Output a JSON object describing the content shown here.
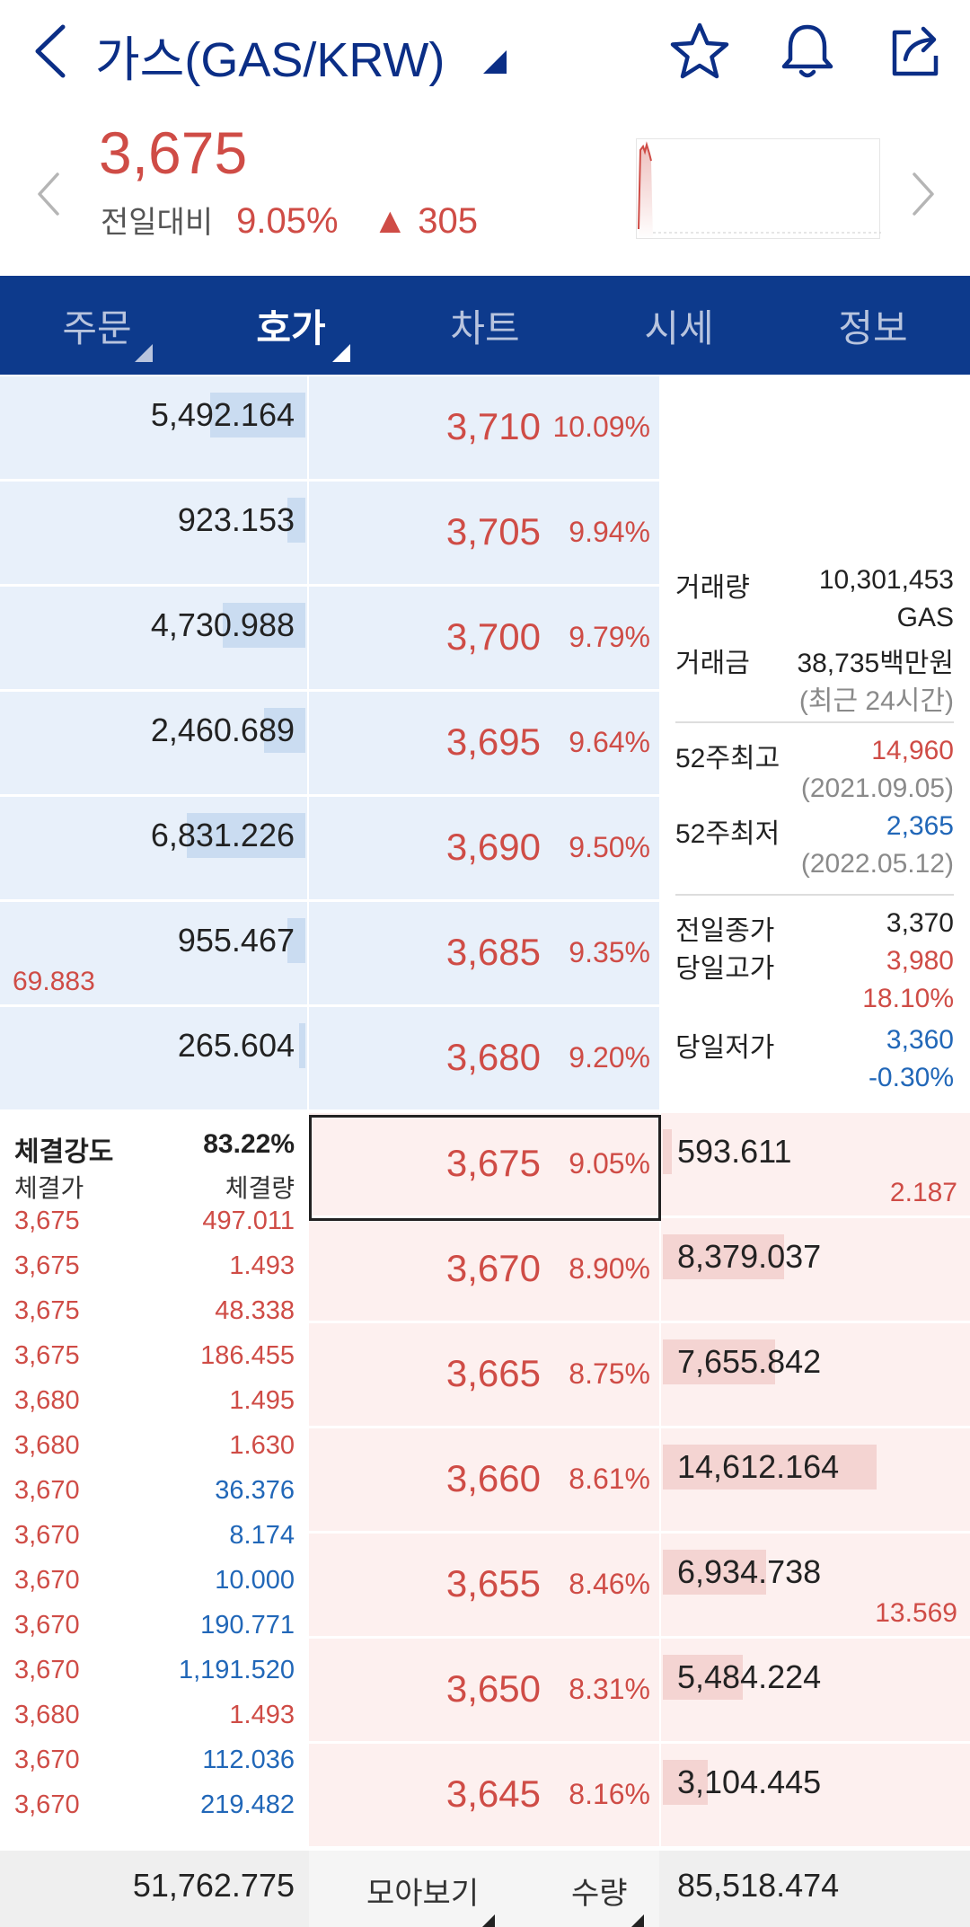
{
  "header": {
    "title": "가스(GAS/KRW)",
    "icons": [
      "back-icon",
      "star-icon",
      "bell-icon",
      "share-icon"
    ]
  },
  "summary": {
    "price": "3,675",
    "change_label": "전일대비",
    "change_pct": "9.05%",
    "change_abs": "▲ 305"
  },
  "tabs": [
    {
      "label": "주문",
      "active": false
    },
    {
      "label": "호가",
      "active": true
    },
    {
      "label": "차트",
      "active": false
    },
    {
      "label": "시세",
      "active": false
    },
    {
      "label": "정보",
      "active": false
    }
  ],
  "asks": [
    {
      "volume": "5,492.164",
      "price": "3,710",
      "pct": "10.09%",
      "bar": 0.32
    },
    {
      "volume": "923.153",
      "price": "3,705",
      "pct": "9.94%",
      "bar": 0.06
    },
    {
      "volume": "4,730.988",
      "price": "3,700",
      "pct": "9.79%",
      "bar": 0.28
    },
    {
      "volume": "2,460.689",
      "price": "3,695",
      "pct": "9.64%",
      "bar": 0.14
    },
    {
      "volume": "6,831.226",
      "price": "3,690",
      "pct": "9.50%",
      "bar": 0.4
    },
    {
      "volume": "955.467",
      "price": "3,685",
      "pct": "9.35%",
      "bar": 0.06
    },
    {
      "volume": "265.604",
      "price": "3,680",
      "pct": "9.20%",
      "bar": 0.02
    }
  ],
  "ask_sub": {
    "value": "69.883"
  },
  "bids": [
    {
      "volume": "593.611",
      "price": "3,675",
      "pct": "9.05%",
      "bar": 0.03
    },
    {
      "volume": "8,379.037",
      "price": "3,670",
      "pct": "8.90%",
      "bar": 0.41
    },
    {
      "volume": "7,655.842",
      "price": "3,665",
      "pct": "8.75%",
      "bar": 0.38
    },
    {
      "volume": "14,612.164",
      "price": "3,660",
      "pct": "8.61%",
      "bar": 0.72
    },
    {
      "volume": "6,934.738",
      "price": "3,655",
      "pct": "8.46%",
      "bar": 0.35
    },
    {
      "volume": "5,484.224",
      "price": "3,650",
      "pct": "8.31%",
      "bar": 0.27
    },
    {
      "volume": "3,104.445",
      "price": "3,645",
      "pct": "8.16%",
      "bar": 0.15
    }
  ],
  "bid_subs": {
    "first": "2.187",
    "fifth": "13.569"
  },
  "info": {
    "volume_label": "거래량",
    "volume_value": "10,301,453",
    "volume_unit": "GAS",
    "amount_label": "거래금",
    "amount_value": "38,735백만원",
    "amount_note": "(최근 24시간)",
    "high52_label": "52주최고",
    "high52_value": "14,960",
    "high52_date": "(2021.09.05)",
    "low52_label": "52주최저",
    "low52_value": "2,365",
    "low52_date": "(2022.05.12)",
    "prev_close_label": "전일종가",
    "prev_close_value": "3,370",
    "day_high_label": "당일고가",
    "day_high_value": "3,980",
    "day_high_pct": "18.10%",
    "day_low_label": "당일저가",
    "day_low_value": "3,360",
    "day_low_pct": "-0.30%"
  },
  "trades": {
    "strength_label": "체결강도",
    "strength_value": "83.22%",
    "price_header": "체결가",
    "volume_header": "체결량",
    "rows": [
      {
        "price": "3,675",
        "volume": "497.011",
        "side": "buy"
      },
      {
        "price": "3,675",
        "volume": "1.493",
        "side": "buy"
      },
      {
        "price": "3,675",
        "volume": "48.338",
        "side": "buy"
      },
      {
        "price": "3,675",
        "volume": "186.455",
        "side": "buy"
      },
      {
        "price": "3,680",
        "volume": "1.495",
        "side": "buy"
      },
      {
        "price": "3,680",
        "volume": "1.630",
        "side": "buy"
      },
      {
        "price": "3,670",
        "volume": "36.376",
        "side": "sell"
      },
      {
        "price": "3,670",
        "volume": "8.174",
        "side": "sell"
      },
      {
        "price": "3,670",
        "volume": "10.000",
        "side": "sell"
      },
      {
        "price": "3,670",
        "volume": "190.771",
        "side": "sell"
      },
      {
        "price": "3,670",
        "volume": "1,191.520",
        "side": "sell"
      },
      {
        "price": "3,680",
        "volume": "1.493",
        "side": "buy"
      },
      {
        "price": "3,670",
        "volume": "112.036",
        "side": "sell"
      },
      {
        "price": "3,670",
        "volume": "219.482",
        "side": "sell"
      }
    ]
  },
  "footer": {
    "ask_total": "51,762.775",
    "view_label": "모아보기",
    "qty_label": "수량",
    "bid_total": "85,518.474"
  },
  "colors": {
    "up": "#cf4c46",
    "down": "#2167b8",
    "brand": "#0d3a8c"
  }
}
